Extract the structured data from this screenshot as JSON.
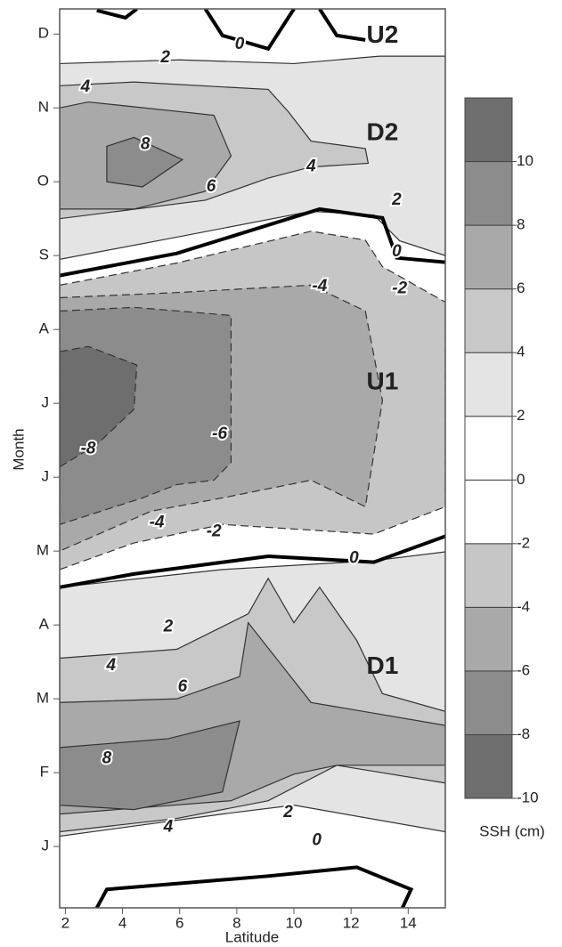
{
  "chart_data": {
    "type": "contour",
    "xlabel": "Latitude",
    "ylabel": "Month",
    "xlim": [
      1.8,
      15.3
    ],
    "xticks": [
      2,
      4,
      6,
      8,
      10,
      12,
      14
    ],
    "ylim": [
      -0.33,
      11.84
    ],
    "yticks": [
      {
        "value": 0.5,
        "label": "J"
      },
      {
        "value": 1.5,
        "label": "F"
      },
      {
        "value": 2.5,
        "label": "M"
      },
      {
        "value": 3.5,
        "label": "A"
      },
      {
        "value": 4.5,
        "label": "M"
      },
      {
        "value": 5.5,
        "label": "J"
      },
      {
        "value": 6.5,
        "label": "J"
      },
      {
        "value": 7.5,
        "label": "A"
      },
      {
        "value": 8.5,
        "label": "S"
      },
      {
        "value": 9.5,
        "label": "O"
      },
      {
        "value": 10.5,
        "label": "N"
      },
      {
        "value": 11.5,
        "label": "D"
      }
    ],
    "colorbar": {
      "label": "SSH (cm)",
      "clim": [
        -10,
        12
      ],
      "ticks": [
        10,
        8,
        6,
        4,
        2,
        0,
        -2,
        -4,
        -6,
        -8,
        -10
      ],
      "colors": [
        "#6e6e6e",
        "#8c8c8c",
        "#a9a9a9",
        "#c6c6c6",
        "#ffffff",
        "#ffffff",
        "#e4e4e4",
        "#c8c8c8",
        "#a9a9a9",
        "#8c8c8c",
        "#6e6e6e"
      ]
    },
    "regions": [
      {
        "level": 2,
        "points": [
          [
            1.8,
            11.1
          ],
          [
            6,
            11.15
          ],
          [
            10,
            11.1
          ],
          [
            13,
            11.2
          ],
          [
            15.3,
            11.2
          ],
          [
            15.3,
            8.5
          ],
          [
            13.7,
            8.7
          ],
          [
            12.8,
            9.05
          ],
          [
            10.6,
            9.1
          ],
          [
            5.9,
            8.75
          ],
          [
            1.8,
            8.45
          ]
        ]
      },
      {
        "level": 4,
        "points": [
          [
            1.8,
            10.8
          ],
          [
            4.4,
            10.85
          ],
          [
            9.1,
            10.75
          ],
          [
            9.8,
            10.45
          ],
          [
            10.6,
            10.05
          ],
          [
            12.5,
            9.95
          ],
          [
            12.6,
            9.75
          ],
          [
            10.6,
            9.7
          ],
          [
            9.1,
            9.55
          ],
          [
            6.9,
            9.25
          ],
          [
            1.8,
            9.0
          ]
        ]
      },
      {
        "level": 6,
        "points": [
          [
            1.8,
            10.5
          ],
          [
            2.8,
            10.58
          ],
          [
            7.2,
            10.4
          ],
          [
            7.8,
            9.85
          ],
          [
            6.9,
            9.37
          ],
          [
            4.4,
            9.13
          ],
          [
            1.8,
            9.13
          ]
        ]
      },
      {
        "level": 8,
        "points": [
          [
            3.45,
            9.98
          ],
          [
            4.4,
            10.1
          ],
          [
            6.1,
            9.8
          ],
          [
            4.7,
            9.43
          ],
          [
            3.45,
            9.5
          ]
        ]
      },
      {
        "level": -2,
        "points": [
          [
            1.8,
            8.1
          ],
          [
            5.9,
            8.4
          ],
          [
            10.6,
            8.83
          ],
          [
            12.5,
            8.71
          ],
          [
            13.1,
            8.35
          ],
          [
            15.3,
            7.87
          ],
          [
            15.3,
            5.1
          ],
          [
            12.8,
            4.73
          ],
          [
            7.5,
            4.86
          ],
          [
            4.4,
            4.61
          ],
          [
            1.8,
            4.25
          ]
        ]
      },
      {
        "level": -4,
        "points": [
          [
            1.8,
            7.93
          ],
          [
            5.9,
            8.0
          ],
          [
            10.6,
            8.1
          ],
          [
            12.5,
            7.75
          ],
          [
            13.1,
            6.54
          ],
          [
            12.5,
            5.1
          ],
          [
            10.6,
            5.46
          ],
          [
            7.5,
            5.22
          ],
          [
            5,
            5.04
          ],
          [
            1.8,
            4.5
          ]
        ]
      },
      {
        "level": -6,
        "points": [
          [
            1.8,
            7.75
          ],
          [
            4.4,
            7.8
          ],
          [
            7.8,
            7.69
          ],
          [
            7.8,
            5.7
          ],
          [
            7.2,
            5.46
          ],
          [
            5.9,
            5.4
          ],
          [
            4.7,
            5.22
          ],
          [
            1.8,
            4.86
          ]
        ]
      },
      {
        "level": -8,
        "points": [
          [
            1.8,
            7.2
          ],
          [
            2.8,
            7.27
          ],
          [
            4.5,
            7.02
          ],
          [
            4.4,
            6.42
          ],
          [
            3.1,
            5.94
          ],
          [
            1.8,
            5.64
          ]
        ]
      },
      {
        "level": 2,
        "points": [
          [
            1.8,
            4.01
          ],
          [
            7.5,
            4.25
          ],
          [
            12.8,
            4.37
          ],
          [
            15.3,
            4.49
          ],
          [
            15.3,
            0.7
          ],
          [
            10,
            1.06
          ],
          [
            7.5,
            0.94
          ],
          [
            1.8,
            0.64
          ]
        ]
      },
      {
        "level": 4,
        "points": [
          [
            1.8,
            3.05
          ],
          [
            5.9,
            3.17
          ],
          [
            8.4,
            3.65
          ],
          [
            9.1,
            4.13
          ],
          [
            10,
            3.53
          ],
          [
            10.9,
            4.01
          ],
          [
            12.2,
            3.29
          ],
          [
            13.1,
            2.57
          ],
          [
            15.3,
            2.33
          ],
          [
            15.3,
            1.36
          ],
          [
            11.5,
            1.6
          ],
          [
            9.1,
            1.12
          ],
          [
            5.9,
            0.88
          ],
          [
            1.8,
            0.7
          ]
        ]
      },
      {
        "level": 6,
        "points": [
          [
            1.8,
            2.45
          ],
          [
            5.9,
            2.5
          ],
          [
            8.1,
            2.8
          ],
          [
            8.4,
            3.53
          ],
          [
            10.6,
            2.45
          ],
          [
            15.3,
            2.14
          ],
          [
            15.3,
            1.6
          ],
          [
            11.5,
            1.6
          ],
          [
            10,
            1.48
          ],
          [
            7.8,
            1.12
          ],
          [
            1.8,
            0.94
          ]
        ]
      },
      {
        "level": 8,
        "points": [
          [
            1.8,
            1.84
          ],
          [
            5.6,
            1.96
          ],
          [
            8.1,
            2.2
          ],
          [
            7.5,
            1.24
          ],
          [
            4.4,
            1.0
          ],
          [
            1.8,
            1.06
          ]
        ]
      }
    ],
    "zero_lines": [
      [
        [
          1.8,
          8.23
        ],
        [
          5.9,
          8.53
        ],
        [
          10.9,
          9.13
        ],
        [
          13.1,
          9.01
        ],
        [
          13.6,
          8.47
        ],
        [
          15.3,
          8.41
        ]
      ],
      [
        [
          1.8,
          4.01
        ],
        [
          4.4,
          4.19
        ],
        [
          9.1,
          4.43
        ],
        [
          12.8,
          4.35
        ],
        [
          15.3,
          4.7
        ]
      ],
      [
        [
          3.1,
          -0.33
        ],
        [
          3.45,
          -0.08
        ],
        [
          9.1,
          0.1
        ],
        [
          12.2,
          0.22
        ],
        [
          14.1,
          -0.08
        ],
        [
          13.8,
          -0.33
        ]
      ],
      [
        [
          3.1,
          11.82
        ],
        [
          4.1,
          11.72
        ],
        [
          4.5,
          11.84
        ]
      ],
      [
        [
          6.9,
          11.84
        ],
        [
          7.5,
          11.48
        ],
        [
          9.1,
          11.3
        ],
        [
          10,
          11.84
        ]
      ],
      [
        [
          10.9,
          11.84
        ],
        [
          11.5,
          11.48
        ],
        [
          12.5,
          11.42
        ]
      ]
    ],
    "contour_labels": [
      {
        "label": "2",
        "x": 5.5,
        "y": 11.18
      },
      {
        "label": "4",
        "x": 2.7,
        "y": 10.78
      },
      {
        "label": "8",
        "x": 4.8,
        "y": 10.0
      },
      {
        "label": "6",
        "x": 7.1,
        "y": 9.43
      },
      {
        "label": "4",
        "x": 10.6,
        "y": 9.7
      },
      {
        "label": "2",
        "x": 13.6,
        "y": 9.25
      },
      {
        "label": "0",
        "x": 13.6,
        "y": 8.55
      },
      {
        "label": "0",
        "x": 8.1,
        "y": 11.36
      },
      {
        "label": "-4",
        "x": 10.9,
        "y": 8.08
      },
      {
        "label": "-2",
        "x": 13.7,
        "y": 8.05
      },
      {
        "label": "-8",
        "x": 2.8,
        "y": 5.88
      },
      {
        "label": "-6",
        "x": 7.4,
        "y": 6.08
      },
      {
        "label": "-4",
        "x": 5.2,
        "y": 4.88
      },
      {
        "label": "-2",
        "x": 7.2,
        "y": 4.76
      },
      {
        "label": "0",
        "x": 12.1,
        "y": 4.4
      },
      {
        "label": "2",
        "x": 5.6,
        "y": 3.47
      },
      {
        "label": "4",
        "x": 3.6,
        "y": 2.95
      },
      {
        "label": "6",
        "x": 6.1,
        "y": 2.66
      },
      {
        "label": "8",
        "x": 3.45,
        "y": 1.69
      },
      {
        "label": "2",
        "x": 9.8,
        "y": 0.96
      },
      {
        "label": "4",
        "x": 5.6,
        "y": 0.76
      },
      {
        "label": "0",
        "x": 10.8,
        "y": 0.58
      }
    ],
    "annotations": [
      {
        "text": "U2",
        "x": 13.1,
        "y": 11.47
      },
      {
        "text": "D2",
        "x": 13.1,
        "y": 10.15
      },
      {
        "text": "U1",
        "x": 13.1,
        "y": 6.78
      },
      {
        "text": "D1",
        "x": 13.1,
        "y": 2.93
      }
    ],
    "annotation_color": "#e00000"
  }
}
